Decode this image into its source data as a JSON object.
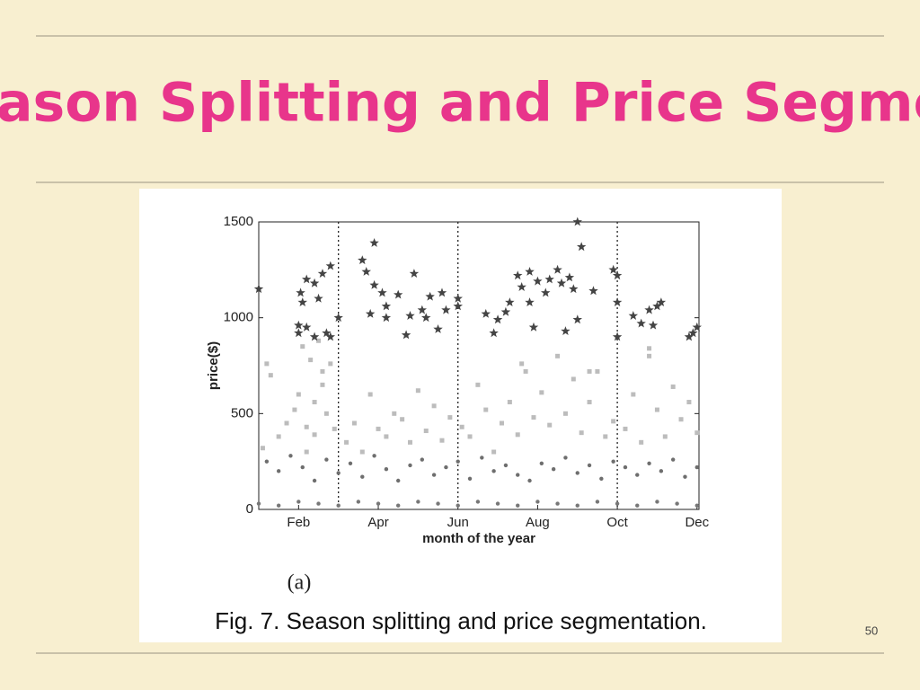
{
  "slide": {
    "title": "ason Splitting and Price Segmentati",
    "page_number": "50"
  },
  "figure": {
    "subcaption": "(a)",
    "caption": "Fig. 7. Season splitting and price segmentation."
  },
  "chart_data": {
    "type": "scatter",
    "xlabel": "month of the year",
    "ylabel": "price($)",
    "xlim": [
      1,
      12.05
    ],
    "ylim": [
      0,
      1500
    ],
    "xticks": [
      {
        "value": 2,
        "label": "Feb"
      },
      {
        "value": 4,
        "label": "Apr"
      },
      {
        "value": 6,
        "label": "Jun"
      },
      {
        "value": 8,
        "label": "Aug"
      },
      {
        "value": 10,
        "label": "Oct"
      },
      {
        "value": 12,
        "label": "Dec"
      }
    ],
    "yticks": [
      0,
      500,
      1000,
      1500
    ],
    "season_splits": [
      3,
      6,
      10
    ],
    "series": [
      {
        "color": "#bcbcbc",
        "marker": "square",
        "x": [
          1.1,
          1.3,
          1.5,
          1.7,
          1.9,
          2.0,
          2.1,
          2.2,
          2.3,
          2.4,
          2.5,
          2.6,
          2.7,
          2.8,
          2.9,
          3.2,
          3.4,
          3.6,
          3.8,
          4.0,
          4.2,
          4.4,
          4.6,
          4.8,
          5.0,
          5.2,
          5.4,
          5.6,
          5.8,
          6.1,
          6.3,
          6.5,
          6.7,
          6.9,
          7.1,
          7.3,
          7.5,
          7.7,
          7.9,
          8.1,
          8.3,
          8.5,
          8.7,
          8.9,
          9.1,
          9.3,
          9.5,
          9.7,
          9.9,
          10.2,
          10.4,
          10.6,
          10.8,
          11.0,
          11.2,
          11.4,
          11.6,
          11.8,
          12.0,
          2.2,
          2.4,
          2.6,
          1.2,
          7.6,
          9.3,
          10.8
        ],
        "values": [
          320,
          700,
          380,
          450,
          520,
          600,
          850,
          430,
          780,
          390,
          880,
          650,
          500,
          760,
          420,
          350,
          450,
          300,
          600,
          420,
          380,
          500,
          470,
          350,
          620,
          410,
          540,
          360,
          480,
          430,
          380,
          650,
          520,
          300,
          450,
          560,
          390,
          720,
          480,
          610,
          440,
          800,
          500,
          680,
          400,
          560,
          720,
          380,
          460,
          420,
          600,
          350,
          800,
          520,
          380,
          640,
          470,
          560,
          400,
          300,
          560,
          720,
          760,
          760,
          720,
          840
        ]
      },
      {
        "color": "#6e6e6e",
        "marker": "dot",
        "x": [
          1.2,
          1.5,
          1.8,
          2.1,
          2.4,
          2.7,
          3.0,
          3.3,
          3.6,
          3.9,
          4.2,
          4.5,
          4.8,
          5.1,
          5.4,
          5.7,
          6.0,
          6.3,
          6.6,
          6.9,
          7.2,
          7.5,
          7.8,
          8.1,
          8.4,
          8.7,
          9.0,
          9.3,
          9.6,
          9.9,
          10.2,
          10.5,
          10.8,
          11.1,
          11.4,
          11.7,
          12.0
        ],
        "values": [
          250,
          200,
          280,
          220,
          150,
          260,
          190,
          240,
          170,
          280,
          210,
          150,
          230,
          260,
          180,
          220,
          250,
          160,
          270,
          200,
          230,
          180,
          150,
          240,
          210,
          270,
          190,
          230,
          160,
          250,
          220,
          180,
          240,
          200,
          260,
          170,
          220
        ]
      },
      {
        "color": "#777777",
        "marker": "dot",
        "x": [
          1.0,
          1.5,
          2.0,
          2.5,
          3.0,
          3.5,
          4.0,
          4.5,
          5.0,
          5.5,
          6.0,
          6.5,
          7.0,
          7.5,
          8.0,
          8.5,
          9.0,
          9.5,
          10.0,
          10.5,
          11.0,
          11.5,
          12.0
        ],
        "values": [
          30,
          20,
          40,
          30,
          20,
          40,
          30,
          20,
          40,
          30,
          20,
          40,
          30,
          20,
          40,
          30,
          20,
          40,
          30,
          20,
          40,
          30,
          20
        ]
      },
      {
        "color": "#444444",
        "marker": "star",
        "x": [
          1.0,
          2.0,
          2.0,
          2.05,
          2.1,
          2.2,
          2.2,
          2.4,
          2.4,
          2.5,
          2.6,
          2.7,
          2.8,
          2.8,
          3.0,
          3.6,
          3.7,
          3.8,
          3.9,
          3.9,
          4.1,
          4.2,
          4.2,
          4.5,
          4.7,
          4.8,
          4.9,
          5.1,
          5.2,
          5.3,
          5.5,
          5.6,
          5.7,
          6.0,
          6.0,
          6.7,
          6.9,
          7.0,
          7.2,
          7.3,
          7.5,
          7.6,
          7.8,
          7.8,
          7.9,
          8.0,
          8.2,
          8.3,
          8.5,
          8.6,
          8.8,
          8.9,
          8.7,
          9.0,
          9.1,
          9.4,
          9.0,
          9.9,
          10.0,
          10.0,
          10.0,
          10.4,
          10.6,
          10.8,
          10.9,
          11.0,
          11.1,
          11.8,
          11.9,
          12.0
        ],
        "values": [
          1150,
          960,
          920,
          1130,
          1080,
          1200,
          950,
          1180,
          900,
          1100,
          1230,
          920,
          1270,
          900,
          1000,
          1300,
          1240,
          1020,
          1390,
          1170,
          1130,
          1060,
          1000,
          1120,
          910,
          1010,
          1230,
          1040,
          1000,
          1110,
          940,
          1130,
          1040,
          1100,
          1060,
          1020,
          920,
          990,
          1030,
          1080,
          1220,
          1160,
          1240,
          1080,
          950,
          1190,
          1130,
          1200,
          1250,
          1180,
          1210,
          1150,
          930,
          990,
          1370,
          1140,
          1500,
          1250,
          1220,
          900,
          1080,
          1010,
          970,
          1040,
          960,
          1060,
          1080,
          900,
          920,
          950
        ]
      }
    ]
  }
}
